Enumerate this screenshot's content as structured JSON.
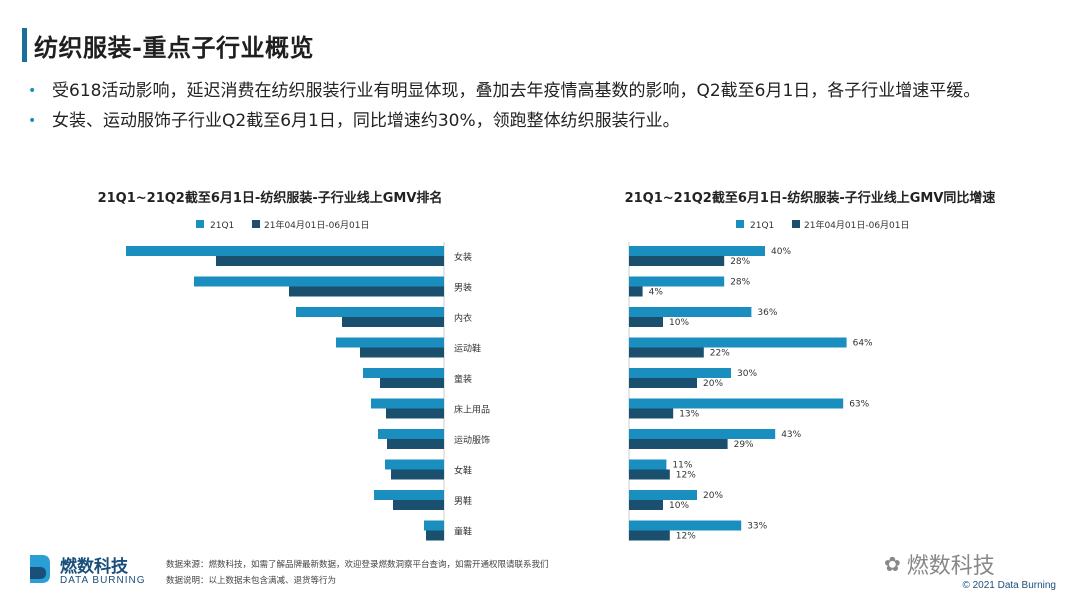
{
  "header": {
    "title": "纺织服装-重点子行业概览",
    "bullets": [
      "受618活动影响，延迟消费在纺织服装行业有明显体现，叠加去年疫情高基数的影响，Q2截至6月1日，各子行业增速平缓。",
      "女装、运动服饰子行业Q2截至6月1日，同比增速约30%，领跑整体纺织服装行业。"
    ]
  },
  "colors": {
    "series1": "#1a8fbf",
    "series2": "#1a4f6e",
    "accent": "#1a6f9a"
  },
  "chart_data": [
    {
      "type": "bar",
      "title": "21Q1~21Q2截至6月1日-纺织服装-子行业线上GMV排名",
      "orientation": "horizontal-left",
      "categories": [
        "女装",
        "男装",
        "内衣",
        "运动鞋",
        "童装",
        "床上用品",
        "运动服饰",
        "女鞋",
        "男鞋",
        "童鞋"
      ],
      "series": [
        {
          "name": "21Q1",
          "values": [
            318,
            250,
            148,
            108,
            81,
            73,
            66,
            59,
            70,
            20
          ]
        },
        {
          "name": "21年04月01日-06月01日",
          "values": [
            228,
            155,
            102,
            84,
            64,
            58,
            57,
            53,
            51,
            18
          ]
        }
      ],
      "legend": "top-center"
    },
    {
      "type": "bar",
      "title": "21Q1~21Q2截至6月1日-纺织服装-子行业线上GMV同比增速",
      "orientation": "horizontal-right",
      "categories": [
        "女装",
        "男装",
        "内衣",
        "运动鞋",
        "童装",
        "床上用品",
        "运动服饰",
        "女鞋",
        "男鞋",
        "童鞋"
      ],
      "series": [
        {
          "name": "21Q1",
          "values": [
            40,
            28,
            36,
            64,
            30,
            63,
            43,
            11,
            20,
            33
          ],
          "labels": [
            "40%",
            "28%",
            "36%",
            "64%",
            "30%",
            "63%",
            "43%",
            "11%",
            "20%",
            "33%"
          ]
        },
        {
          "name": "21年04月01日-06月01日",
          "values": [
            28,
            4,
            10,
            22,
            20,
            13,
            29,
            12,
            10,
            12
          ],
          "labels": [
            "28%",
            "4%",
            "10%",
            "22%",
            "20%",
            "13%",
            "29%",
            "12%",
            "10%",
            "12%"
          ]
        }
      ],
      "legend": "top-center"
    }
  ],
  "footer": {
    "source": "数据来源：燃数科技，如需了解品牌最新数据，欢迎登录燃数洞察平台查询，如需开通权限请联系我们",
    "note": "数据说明：以上数据未包含满减、退货等行为",
    "logo_cn": "燃数科技",
    "logo_en": "DATA BURNING",
    "watermark": "燃数科技",
    "copyright": "© 2021 Data Burning"
  }
}
